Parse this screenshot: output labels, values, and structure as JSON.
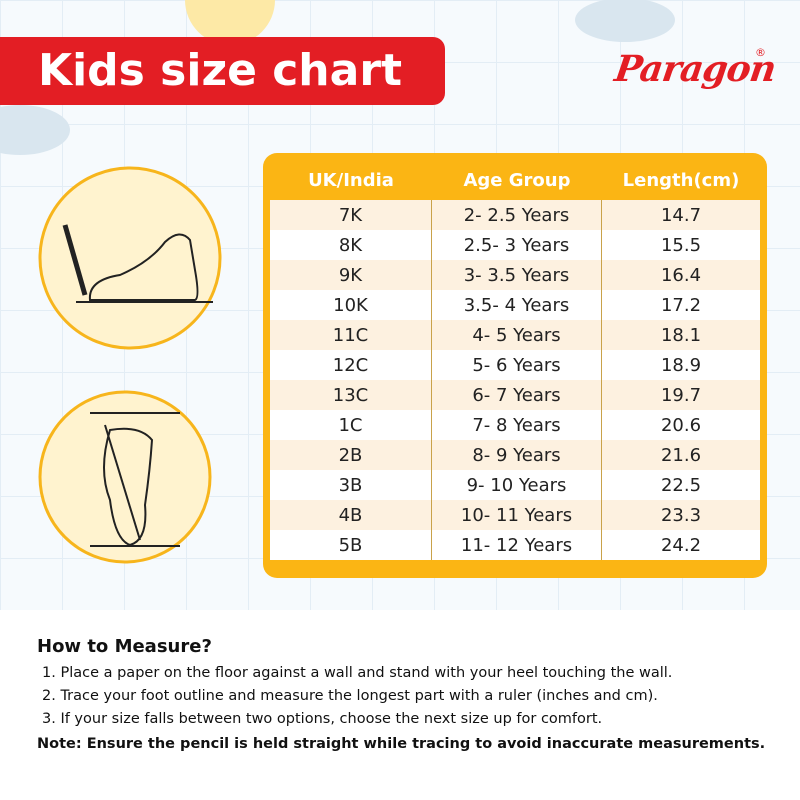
{
  "header": {
    "title": "Kids size chart",
    "logo": "Paragon",
    "logo_mark": "®"
  },
  "table": {
    "columns": [
      "UK/India",
      "Age Group",
      "Length(cm)"
    ],
    "rows": [
      [
        "7K",
        "2- 2.5 Years",
        "14.7"
      ],
      [
        "8K",
        "2.5- 3 Years",
        "15.5"
      ],
      [
        "9K",
        "3- 3.5 Years",
        "16.4"
      ],
      [
        "10K",
        "3.5- 4 Years",
        "17.2"
      ],
      [
        "11C",
        "4- 5 Years",
        "18.1"
      ],
      [
        "12C",
        "5- 6 Years",
        "18.9"
      ],
      [
        "13C",
        "6- 7 Years",
        "19.7"
      ],
      [
        "1C",
        "7- 8 Years",
        "20.6"
      ],
      [
        "2B",
        "8- 9 Years",
        "21.6"
      ],
      [
        "3B",
        "9- 10 Years",
        "22.5"
      ],
      [
        "4B",
        "10- 11 Years",
        "23.3"
      ],
      [
        "5B",
        "11- 12 Years",
        "24.2"
      ]
    ]
  },
  "instructions": {
    "title": "How to Measure?",
    "steps": [
      "1. Place a paper on the floor against a wall and stand with your heel touching the wall.",
      "2. Trace your foot outline and measure the longest part with a ruler (inches and cm).",
      "3. If your size falls between two options, choose the next size up for comfort."
    ],
    "note": "Note: Ensure the pencil is held straight while tracing to avoid inaccurate measurements."
  }
}
